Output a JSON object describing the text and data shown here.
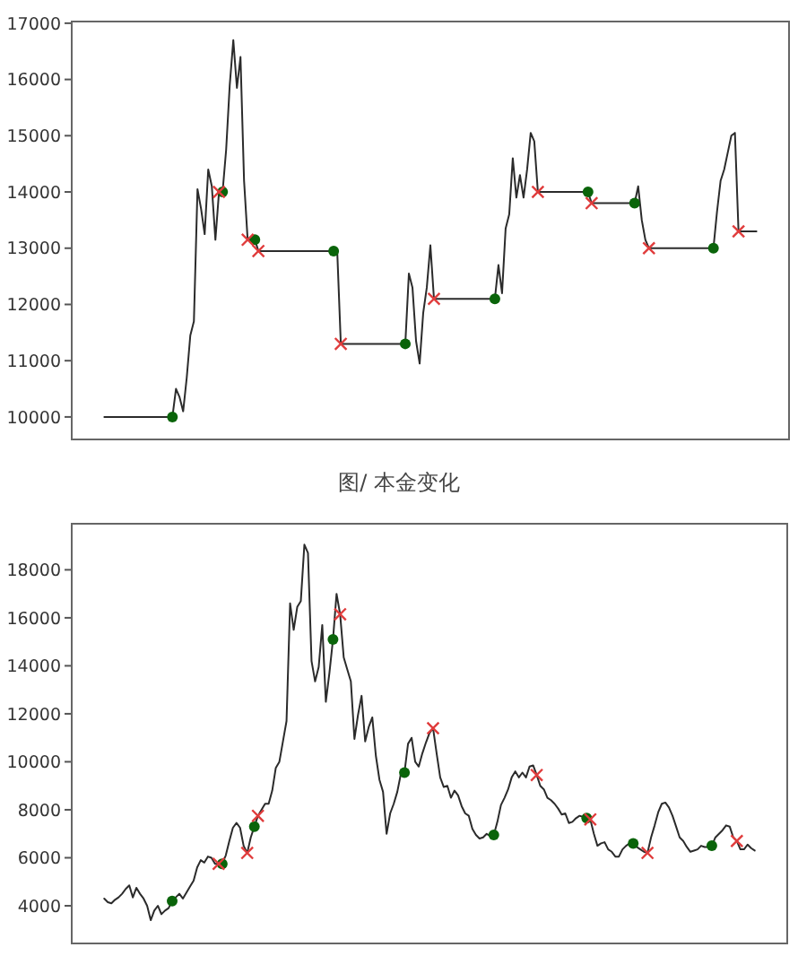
{
  "chart_data": [
    {
      "type": "line",
      "tick_labels": "y",
      "ylim": [
        9600,
        17030
      ],
      "yticks": [
        10000,
        11000,
        12000,
        13000,
        14000,
        15000,
        16000,
        17000
      ],
      "annotations": [
        "图/ 本金变化"
      ],
      "categories": [
        null,
        null,
        null,
        null,
        null,
        null,
        null,
        null,
        null,
        null,
        null,
        null,
        null,
        null,
        null,
        null,
        null,
        null,
        null,
        null,
        null,
        null,
        null,
        null,
        null,
        null,
        null,
        null,
        null,
        null,
        null,
        null,
        null,
        null,
        null,
        null,
        null,
        null,
        null,
        null,
        null,
        null,
        null,
        null,
        null,
        null,
        null,
        null,
        null,
        null,
        null,
        null,
        null,
        null,
        null,
        null,
        null,
        null,
        null,
        null,
        null,
        null,
        null,
        null,
        null,
        null,
        null,
        null,
        null,
        null,
        null,
        null,
        null,
        null,
        null,
        null,
        null,
        null,
        null,
        null,
        null,
        null,
        null,
        null,
        null,
        null,
        null,
        null,
        null,
        null,
        null,
        null,
        null,
        null,
        null,
        null,
        null,
        null,
        null,
        null,
        null,
        null,
        null,
        null,
        null,
        null,
        null,
        null,
        null,
        null,
        null,
        null,
        null,
        null,
        null,
        null,
        null,
        null,
        null,
        null,
        null,
        null,
        null,
        null,
        null,
        null,
        null,
        null,
        null,
        null,
        null,
        null,
        null,
        null,
        null,
        null,
        null,
        null,
        null,
        null,
        null,
        null,
        null,
        null,
        null,
        null,
        null,
        null,
        null,
        null,
        null,
        null,
        null,
        null,
        null,
        null,
        null,
        null,
        null,
        null,
        null,
        null,
        null,
        null,
        null,
        null,
        null,
        null,
        null,
        null,
        null,
        null,
        null,
        null,
        null,
        null,
        null,
        null,
        null,
        null,
        null,
        null,
        null
      ],
      "series": [
        {
          "type": "line",
          "color": "#2b2b2b",
          "values": [
            10000,
            10000,
            10000,
            10000,
            10000,
            10000,
            10000,
            10000,
            10000,
            10000,
            10000,
            10000,
            10000,
            10000,
            10000,
            10000,
            10000,
            10000,
            10000,
            10000,
            10500,
            10350,
            10100,
            10700,
            11450,
            11700,
            14050,
            13700,
            13250,
            14400,
            14100,
            13150,
            14000,
            14000,
            14750,
            15900,
            16700,
            15850,
            16400,
            14200,
            13150,
            13150,
            13150,
            12950,
            12950,
            12950,
            12950,
            12950,
            12950,
            12950,
            12950,
            12950,
            12950,
            12950,
            12950,
            12950,
            12950,
            12950,
            12950,
            12950,
            12950,
            12950,
            12950,
            12950,
            12950,
            12950,
            11300,
            11300,
            11300,
            11300,
            11300,
            11300,
            11300,
            11300,
            11300,
            11300,
            11300,
            11300,
            11300,
            11300,
            11300,
            11300,
            11300,
            11300,
            11300,
            12550,
            12300,
            11350,
            10950,
            11850,
            12300,
            13050,
            12100,
            12100,
            12100,
            12100,
            12100,
            12100,
            12100,
            12100,
            12100,
            12100,
            12100,
            12100,
            12100,
            12100,
            12100,
            12100,
            12100,
            12100,
            12700,
            12200,
            13350,
            13600,
            14600,
            13900,
            14300,
            13900,
            14400,
            15050,
            14900,
            14000,
            14000,
            14000,
            14000,
            14000,
            14000,
            14000,
            14000,
            14000,
            14000,
            14000,
            14000,
            14000,
            14000,
            14000,
            13800,
            13800,
            13800,
            13800,
            13800,
            13800,
            13800,
            13800,
            13800,
            13800,
            13800,
            13800,
            13800,
            14100,
            13500,
            13150,
            13000,
            13000,
            13000,
            13000,
            13000,
            13000,
            13000,
            13000,
            13000,
            13000,
            13000,
            13000,
            13000,
            13000,
            13000,
            13000,
            13000,
            13000,
            13000,
            13650,
            14200,
            14400,
            14700,
            15000,
            15050,
            13300,
            13300,
            13300,
            13300,
            13300,
            13300
          ]
        },
        {
          "type": "scatter",
          "marker": "circle",
          "color": "#0a640a",
          "values": [
            null,
            null,
            null,
            null,
            null,
            null,
            null,
            null,
            null,
            null,
            null,
            null,
            null,
            null,
            null,
            null,
            null,
            null,
            null,
            10000,
            null,
            null,
            null,
            null,
            null,
            null,
            null,
            null,
            null,
            null,
            null,
            null,
            null,
            14000,
            null,
            null,
            null,
            null,
            null,
            null,
            null,
            null,
            13150,
            null,
            null,
            null,
            null,
            null,
            null,
            null,
            null,
            null,
            null,
            null,
            null,
            null,
            null,
            null,
            null,
            null,
            null,
            null,
            null,
            null,
            12950,
            null,
            null,
            null,
            null,
            null,
            null,
            null,
            null,
            null,
            null,
            null,
            null,
            null,
            null,
            null,
            null,
            null,
            null,
            null,
            11300,
            null,
            null,
            null,
            null,
            null,
            null,
            null,
            null,
            null,
            null,
            null,
            null,
            null,
            null,
            null,
            null,
            null,
            null,
            null,
            null,
            null,
            null,
            null,
            null,
            12100,
            null,
            null,
            null,
            null,
            null,
            null,
            null,
            null,
            null,
            null,
            null,
            null,
            null,
            null,
            null,
            null,
            null,
            null,
            null,
            null,
            null,
            null,
            null,
            null,
            null,
            14000,
            null,
            null,
            null,
            null,
            null,
            null,
            null,
            null,
            null,
            null,
            null,
            null,
            13800,
            null,
            null,
            null,
            null,
            null,
            null,
            null,
            null,
            null,
            null,
            null,
            null,
            null,
            null,
            null,
            null,
            null,
            null,
            null,
            null,
            null,
            13000,
            null,
            null,
            null,
            null,
            null,
            null,
            null,
            null,
            null,
            null,
            null,
            null
          ]
        },
        {
          "type": "scatter",
          "marker": "cross",
          "color": "#e03c3c",
          "values": [
            null,
            null,
            null,
            null,
            null,
            null,
            null,
            null,
            null,
            null,
            null,
            null,
            null,
            null,
            null,
            null,
            null,
            null,
            null,
            null,
            null,
            null,
            null,
            null,
            null,
            null,
            null,
            null,
            null,
            null,
            null,
            null,
            14000,
            null,
            null,
            null,
            null,
            null,
            null,
            null,
            13150,
            null,
            null,
            12950,
            null,
            null,
            null,
            null,
            null,
            null,
            null,
            null,
            null,
            null,
            null,
            null,
            null,
            null,
            null,
            null,
            null,
            null,
            null,
            null,
            null,
            null,
            11300,
            null,
            null,
            null,
            null,
            null,
            null,
            null,
            null,
            null,
            null,
            null,
            null,
            null,
            null,
            null,
            null,
            null,
            null,
            null,
            null,
            null,
            null,
            null,
            null,
            null,
            12100,
            null,
            null,
            null,
            null,
            null,
            null,
            null,
            null,
            null,
            null,
            null,
            null,
            null,
            null,
            null,
            null,
            null,
            null,
            null,
            null,
            null,
            null,
            null,
            null,
            null,
            null,
            null,
            null,
            14000,
            null,
            null,
            null,
            null,
            null,
            null,
            null,
            null,
            null,
            null,
            null,
            null,
            null,
            null,
            13800,
            null,
            null,
            null,
            null,
            null,
            null,
            null,
            null,
            null,
            null,
            null,
            null,
            null,
            null,
            null,
            13000,
            null,
            null,
            null,
            null,
            null,
            null,
            null,
            null,
            null,
            null,
            null,
            null,
            null,
            null,
            null,
            null,
            null,
            null,
            null,
            null,
            null,
            null,
            null,
            null,
            13300,
            null,
            null,
            null,
            null,
            null
          ]
        }
      ]
    },
    {
      "type": "line",
      "tick_labels": "y",
      "ylim": [
        2430,
        19920
      ],
      "yticks": [
        4000,
        6000,
        8000,
        10000,
        12000,
        14000,
        16000,
        18000
      ],
      "categories": [
        null,
        null,
        null,
        null,
        null,
        null,
        null,
        null,
        null,
        null,
        null,
        null,
        null,
        null,
        null,
        null,
        null,
        null,
        null,
        null,
        null,
        null,
        null,
        null,
        null,
        null,
        null,
        null,
        null,
        null,
        null,
        null,
        null,
        null,
        null,
        null,
        null,
        null,
        null,
        null,
        null,
        null,
        null,
        null,
        null,
        null,
        null,
        null,
        null,
        null,
        null,
        null,
        null,
        null,
        null,
        null,
        null,
        null,
        null,
        null,
        null,
        null,
        null,
        null,
        null,
        null,
        null,
        null,
        null,
        null,
        null,
        null,
        null,
        null,
        null,
        null,
        null,
        null,
        null,
        null,
        null,
        null,
        null,
        null,
        null,
        null,
        null,
        null,
        null,
        null,
        null,
        null,
        null,
        null,
        null,
        null,
        null,
        null,
        null,
        null,
        null,
        null,
        null,
        null,
        null,
        null,
        null,
        null,
        null,
        null,
        null,
        null,
        null,
        null,
        null,
        null,
        null,
        null,
        null,
        null,
        null,
        null,
        null,
        null,
        null,
        null,
        null,
        null,
        null,
        null,
        null,
        null,
        null,
        null,
        null,
        null,
        null,
        null,
        null,
        null,
        null,
        null,
        null,
        null,
        null,
        null,
        null,
        null,
        null,
        null,
        null,
        null,
        null,
        null,
        null,
        null,
        null,
        null,
        null,
        null,
        null,
        null,
        null,
        null,
        null,
        null,
        null,
        null,
        null,
        null,
        null,
        null,
        null,
        null,
        null,
        null,
        null,
        null,
        null,
        null,
        null,
        null,
        null
      ],
      "series": [
        {
          "type": "line",
          "color": "#2b2b2b",
          "values": [
            4300,
            4150,
            4100,
            4250,
            4350,
            4500,
            4700,
            4850,
            4350,
            4750,
            4500,
            4300,
            4000,
            3400,
            3800,
            4000,
            3650,
            3800,
            3900,
            4200,
            4350,
            4500,
            4300,
            4550,
            4800,
            5050,
            5600,
            5900,
            5800,
            6050,
            6000,
            5750,
            5750,
            5750,
            6100,
            6700,
            7250,
            7450,
            7250,
            6500,
            6200,
            6850,
            7300,
            7750,
            8000,
            8250,
            8250,
            8800,
            9750,
            10000,
            10850,
            11700,
            16600,
            15500,
            16450,
            16700,
            19050,
            18700,
            14200,
            13350,
            13950,
            15700,
            12500,
            13700,
            15100,
            17000,
            16150,
            14350,
            13850,
            13350,
            10950,
            11950,
            12750,
            10850,
            11450,
            11850,
            10250,
            9250,
            8750,
            7000,
            7850,
            8250,
            8750,
            9500,
            9550,
            10750,
            11000,
            10000,
            9800,
            10350,
            10800,
            11200,
            11400,
            10350,
            9350,
            8950,
            9000,
            8500,
            8800,
            8600,
            8150,
            7850,
            7750,
            7200,
            6950,
            6800,
            6850,
            7000,
            6900,
            6950,
            7500,
            8200,
            8500,
            8850,
            9350,
            9600,
            9350,
            9550,
            9350,
            9800,
            9850,
            9450,
            9000,
            8850,
            8500,
            8400,
            8250,
            8050,
            7800,
            7850,
            7450,
            7500,
            7650,
            7750,
            7700,
            7650,
            7600,
            7000,
            6500,
            6600,
            6650,
            6350,
            6250,
            6050,
            6050,
            6350,
            6500,
            6600,
            6600,
            6450,
            6350,
            6250,
            6200,
            6850,
            7350,
            7900,
            8250,
            8300,
            8100,
            7750,
            7300,
            6850,
            6700,
            6450,
            6250,
            6300,
            6350,
            6500,
            6450,
            6450,
            6500,
            6850,
            7000,
            7150,
            7350,
            7300,
            6850,
            6700,
            6350,
            6350,
            6550,
            6400,
            6300
          ]
        },
        {
          "type": "scatter",
          "marker": "circle",
          "color": "#0a640a",
          "values": [
            null,
            null,
            null,
            null,
            null,
            null,
            null,
            null,
            null,
            null,
            null,
            null,
            null,
            null,
            null,
            null,
            null,
            null,
            null,
            4200,
            null,
            null,
            null,
            null,
            null,
            null,
            null,
            null,
            null,
            null,
            null,
            null,
            null,
            5750,
            null,
            null,
            null,
            null,
            null,
            null,
            null,
            null,
            7300,
            null,
            null,
            null,
            null,
            null,
            null,
            null,
            null,
            null,
            null,
            null,
            null,
            null,
            null,
            null,
            null,
            null,
            null,
            null,
            null,
            null,
            15100,
            null,
            null,
            null,
            null,
            null,
            null,
            null,
            null,
            null,
            null,
            null,
            null,
            null,
            null,
            null,
            null,
            null,
            null,
            null,
            9550,
            null,
            null,
            null,
            null,
            null,
            null,
            null,
            null,
            null,
            null,
            null,
            null,
            null,
            null,
            null,
            null,
            null,
            null,
            null,
            null,
            null,
            null,
            null,
            null,
            6950,
            null,
            null,
            null,
            null,
            null,
            null,
            null,
            null,
            null,
            null,
            null,
            null,
            null,
            null,
            null,
            null,
            null,
            null,
            null,
            null,
            null,
            null,
            null,
            null,
            null,
            7650,
            null,
            null,
            null,
            null,
            null,
            null,
            null,
            null,
            null,
            null,
            null,
            null,
            6600,
            null,
            null,
            null,
            null,
            null,
            null,
            null,
            null,
            null,
            null,
            null,
            null,
            null,
            null,
            null,
            null,
            null,
            null,
            null,
            null,
            null,
            6500,
            null,
            null,
            null,
            null,
            null,
            null,
            null,
            null,
            null,
            null,
            null,
            null
          ]
        },
        {
          "type": "scatter",
          "marker": "cross",
          "color": "#e03c3c",
          "values": [
            null,
            null,
            null,
            null,
            null,
            null,
            null,
            null,
            null,
            null,
            null,
            null,
            null,
            null,
            null,
            null,
            null,
            null,
            null,
            null,
            null,
            null,
            null,
            null,
            null,
            null,
            null,
            null,
            null,
            null,
            null,
            null,
            5750,
            null,
            null,
            null,
            null,
            null,
            null,
            null,
            6200,
            null,
            null,
            7750,
            null,
            null,
            null,
            null,
            null,
            null,
            null,
            null,
            null,
            null,
            null,
            null,
            null,
            null,
            null,
            null,
            null,
            null,
            null,
            null,
            null,
            null,
            16150,
            null,
            null,
            null,
            null,
            null,
            null,
            null,
            null,
            null,
            null,
            null,
            null,
            null,
            null,
            null,
            null,
            null,
            null,
            null,
            null,
            null,
            null,
            null,
            null,
            null,
            11400,
            null,
            null,
            null,
            null,
            null,
            null,
            null,
            null,
            null,
            null,
            null,
            null,
            null,
            null,
            null,
            null,
            null,
            null,
            null,
            null,
            null,
            null,
            null,
            null,
            null,
            null,
            null,
            null,
            9450,
            null,
            null,
            null,
            null,
            null,
            null,
            null,
            null,
            null,
            null,
            null,
            null,
            null,
            null,
            7600,
            null,
            null,
            null,
            null,
            null,
            null,
            null,
            null,
            null,
            null,
            null,
            null,
            null,
            null,
            null,
            6200,
            null,
            null,
            null,
            null,
            null,
            null,
            null,
            null,
            null,
            null,
            null,
            null,
            null,
            null,
            null,
            null,
            null,
            null,
            null,
            null,
            null,
            null,
            null,
            null,
            6700,
            null,
            null,
            null,
            null,
            null
          ]
        }
      ]
    }
  ]
}
